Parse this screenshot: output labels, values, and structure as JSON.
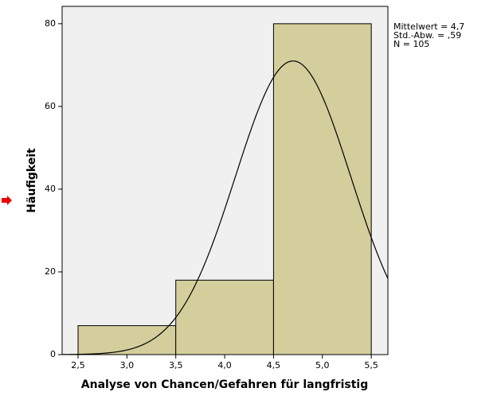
{
  "chart_data": {
    "type": "histogram",
    "x_label": "Analyse von Chancen/Gefahren für langfristig",
    "y_label": "Häufigkeit",
    "bins": [
      2.5,
      3.5,
      4.5,
      5.5
    ],
    "values": [
      7,
      18,
      80
    ],
    "color": "#d3ce9b",
    "xlim": [
      2.337,
      5.67
    ],
    "ylim": [
      0,
      84.2
    ],
    "xticks": [
      {
        "value": 2.5,
        "label": "2,5"
      },
      {
        "value": 3.0,
        "label": "3,0"
      },
      {
        "value": 3.5,
        "label": "3,5"
      },
      {
        "value": 4.0,
        "label": "4,0"
      },
      {
        "value": 4.5,
        "label": "4,5"
      },
      {
        "value": 5.0,
        "label": "5,0"
      },
      {
        "value": 5.5,
        "label": "5,5"
      }
    ],
    "yticks": [
      0,
      20,
      40,
      60,
      80
    ],
    "stats": {
      "mean": {
        "value": 4.7,
        "label": "Mittelwert = 4,7"
      },
      "sd": {
        "value": 0.59,
        "label": "Std.-Abw. = ,59"
      },
      "n": {
        "value": 105,
        "label": "N = 105"
      }
    }
  }
}
